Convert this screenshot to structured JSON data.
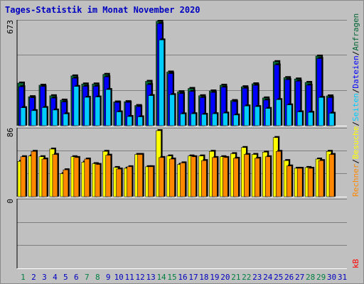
{
  "title": "Tages-Statistik im Monat November 2020",
  "colors": {
    "anfragen": "#006633",
    "dateien": "#0000ff",
    "seiten": "#00ccff",
    "besuche": "#ffff00",
    "rechner": "#ff8800",
    "kb": "#ff0000",
    "weekday": "#0000c0",
    "weekend": "#008040"
  },
  "chart_data": [
    {
      "type": "bar",
      "ymax_label": "673",
      "ylim": [
        0,
        673
      ],
      "legend": [
        {
          "text": "Anfragen",
          "color": "#006633"
        },
        {
          "text": "/",
          "color": "#000000"
        },
        {
          "text": "Dateien",
          "color": "#0000ff"
        },
        {
          "text": "/",
          "color": "#000000"
        },
        {
          "text": "Seiten",
          "color": "#00ccff"
        }
      ],
      "categories": [
        "1",
        "2",
        "3",
        "4",
        "5",
        "6",
        "7",
        "8",
        "9",
        "10",
        "11",
        "12",
        "13",
        "14",
        "15",
        "16",
        "17",
        "18",
        "19",
        "20",
        "21",
        "22",
        "23",
        "24",
        "25",
        "26",
        "27",
        "28",
        "29",
        "30",
        "31"
      ],
      "series": [
        {
          "name": "Anfragen",
          "values": [
            275,
            187,
            261,
            193,
            165,
            321,
            269,
            269,
            331,
            153,
            155,
            130,
            286,
            673,
            346,
            219,
            240,
            193,
            224,
            261,
            162,
            251,
            270,
            179,
            413,
            310,
            301,
            279,
            449,
            192,
            0
          ]
        },
        {
          "name": "Dateien",
          "values": [
            251,
            180,
            253,
            178,
            153,
            306,
            254,
            254,
            315,
            150,
            150,
            123,
            265,
            658,
            336,
            207,
            221,
            181,
            214,
            248,
            155,
            241,
            260,
            165,
            392,
            297,
            287,
            261,
            433,
            181,
            0
          ]
        },
        {
          "name": "Seiten",
          "values": [
            116,
            97,
            117,
            101,
            76,
            253,
            183,
            185,
            233,
            89,
            59,
            57,
            194,
            553,
            200,
            76,
            77,
            73,
            77,
            81,
            69,
            127,
            123,
            111,
            168,
            134,
            89,
            86,
            182,
            80,
            0
          ]
        }
      ]
    },
    {
      "type": "bar",
      "ymax_label": "86",
      "ylim": [
        0,
        86
      ],
      "legend": [
        {
          "text": "Rechner",
          "color": "#ff8800"
        },
        {
          "text": "/",
          "color": "#000000"
        },
        {
          "text": "Besuche",
          "color": "#ffff00"
        }
      ],
      "categories": [
        "1",
        "2",
        "3",
        "4",
        "5",
        "6",
        "7",
        "8",
        "9",
        "10",
        "11",
        "12",
        "13",
        "14",
        "15",
        "16",
        "17",
        "18",
        "19",
        "20",
        "21",
        "22",
        "23",
        "24",
        "25",
        "26",
        "27",
        "28",
        "29",
        "30",
        "31"
      ],
      "series": [
        {
          "name": "Besuche",
          "values": [
            46,
            53,
            52,
            62,
            30,
            52,
            45,
            43,
            59,
            38,
            37,
            55,
            39,
            86,
            53,
            42,
            53,
            53,
            59,
            52,
            56,
            64,
            55,
            58,
            77,
            47,
            37,
            38,
            49,
            59,
            0
          ]
        },
        {
          "name": "Rechner",
          "values": [
            52,
            59,
            49,
            55,
            35,
            51,
            49,
            42,
            54,
            36,
            39,
            55,
            39,
            51,
            49,
            44,
            52,
            47,
            51,
            51,
            50,
            55,
            50,
            52,
            59,
            40,
            37,
            37,
            47,
            55,
            0
          ]
        }
      ]
    },
    {
      "type": "bar",
      "ymax_label": "0",
      "ylim": [
        0,
        1
      ],
      "legend": [
        {
          "text": "kB",
          "color": "#ff0000"
        }
      ],
      "categories": [],
      "series": [
        {
          "name": "kB",
          "values": []
        }
      ]
    }
  ],
  "x_axis": {
    "labels": [
      "1",
      "2",
      "3",
      "4",
      "5",
      "6",
      "7",
      "8",
      "9",
      "10",
      "11",
      "12",
      "13",
      "14",
      "15",
      "16",
      "17",
      "18",
      "19",
      "20",
      "21",
      "22",
      "23",
      "24",
      "25",
      "26",
      "27",
      "28",
      "29",
      "30",
      "31"
    ],
    "weekend_days": [
      1,
      7,
      8,
      14,
      15,
      21,
      22,
      28,
      29
    ]
  }
}
